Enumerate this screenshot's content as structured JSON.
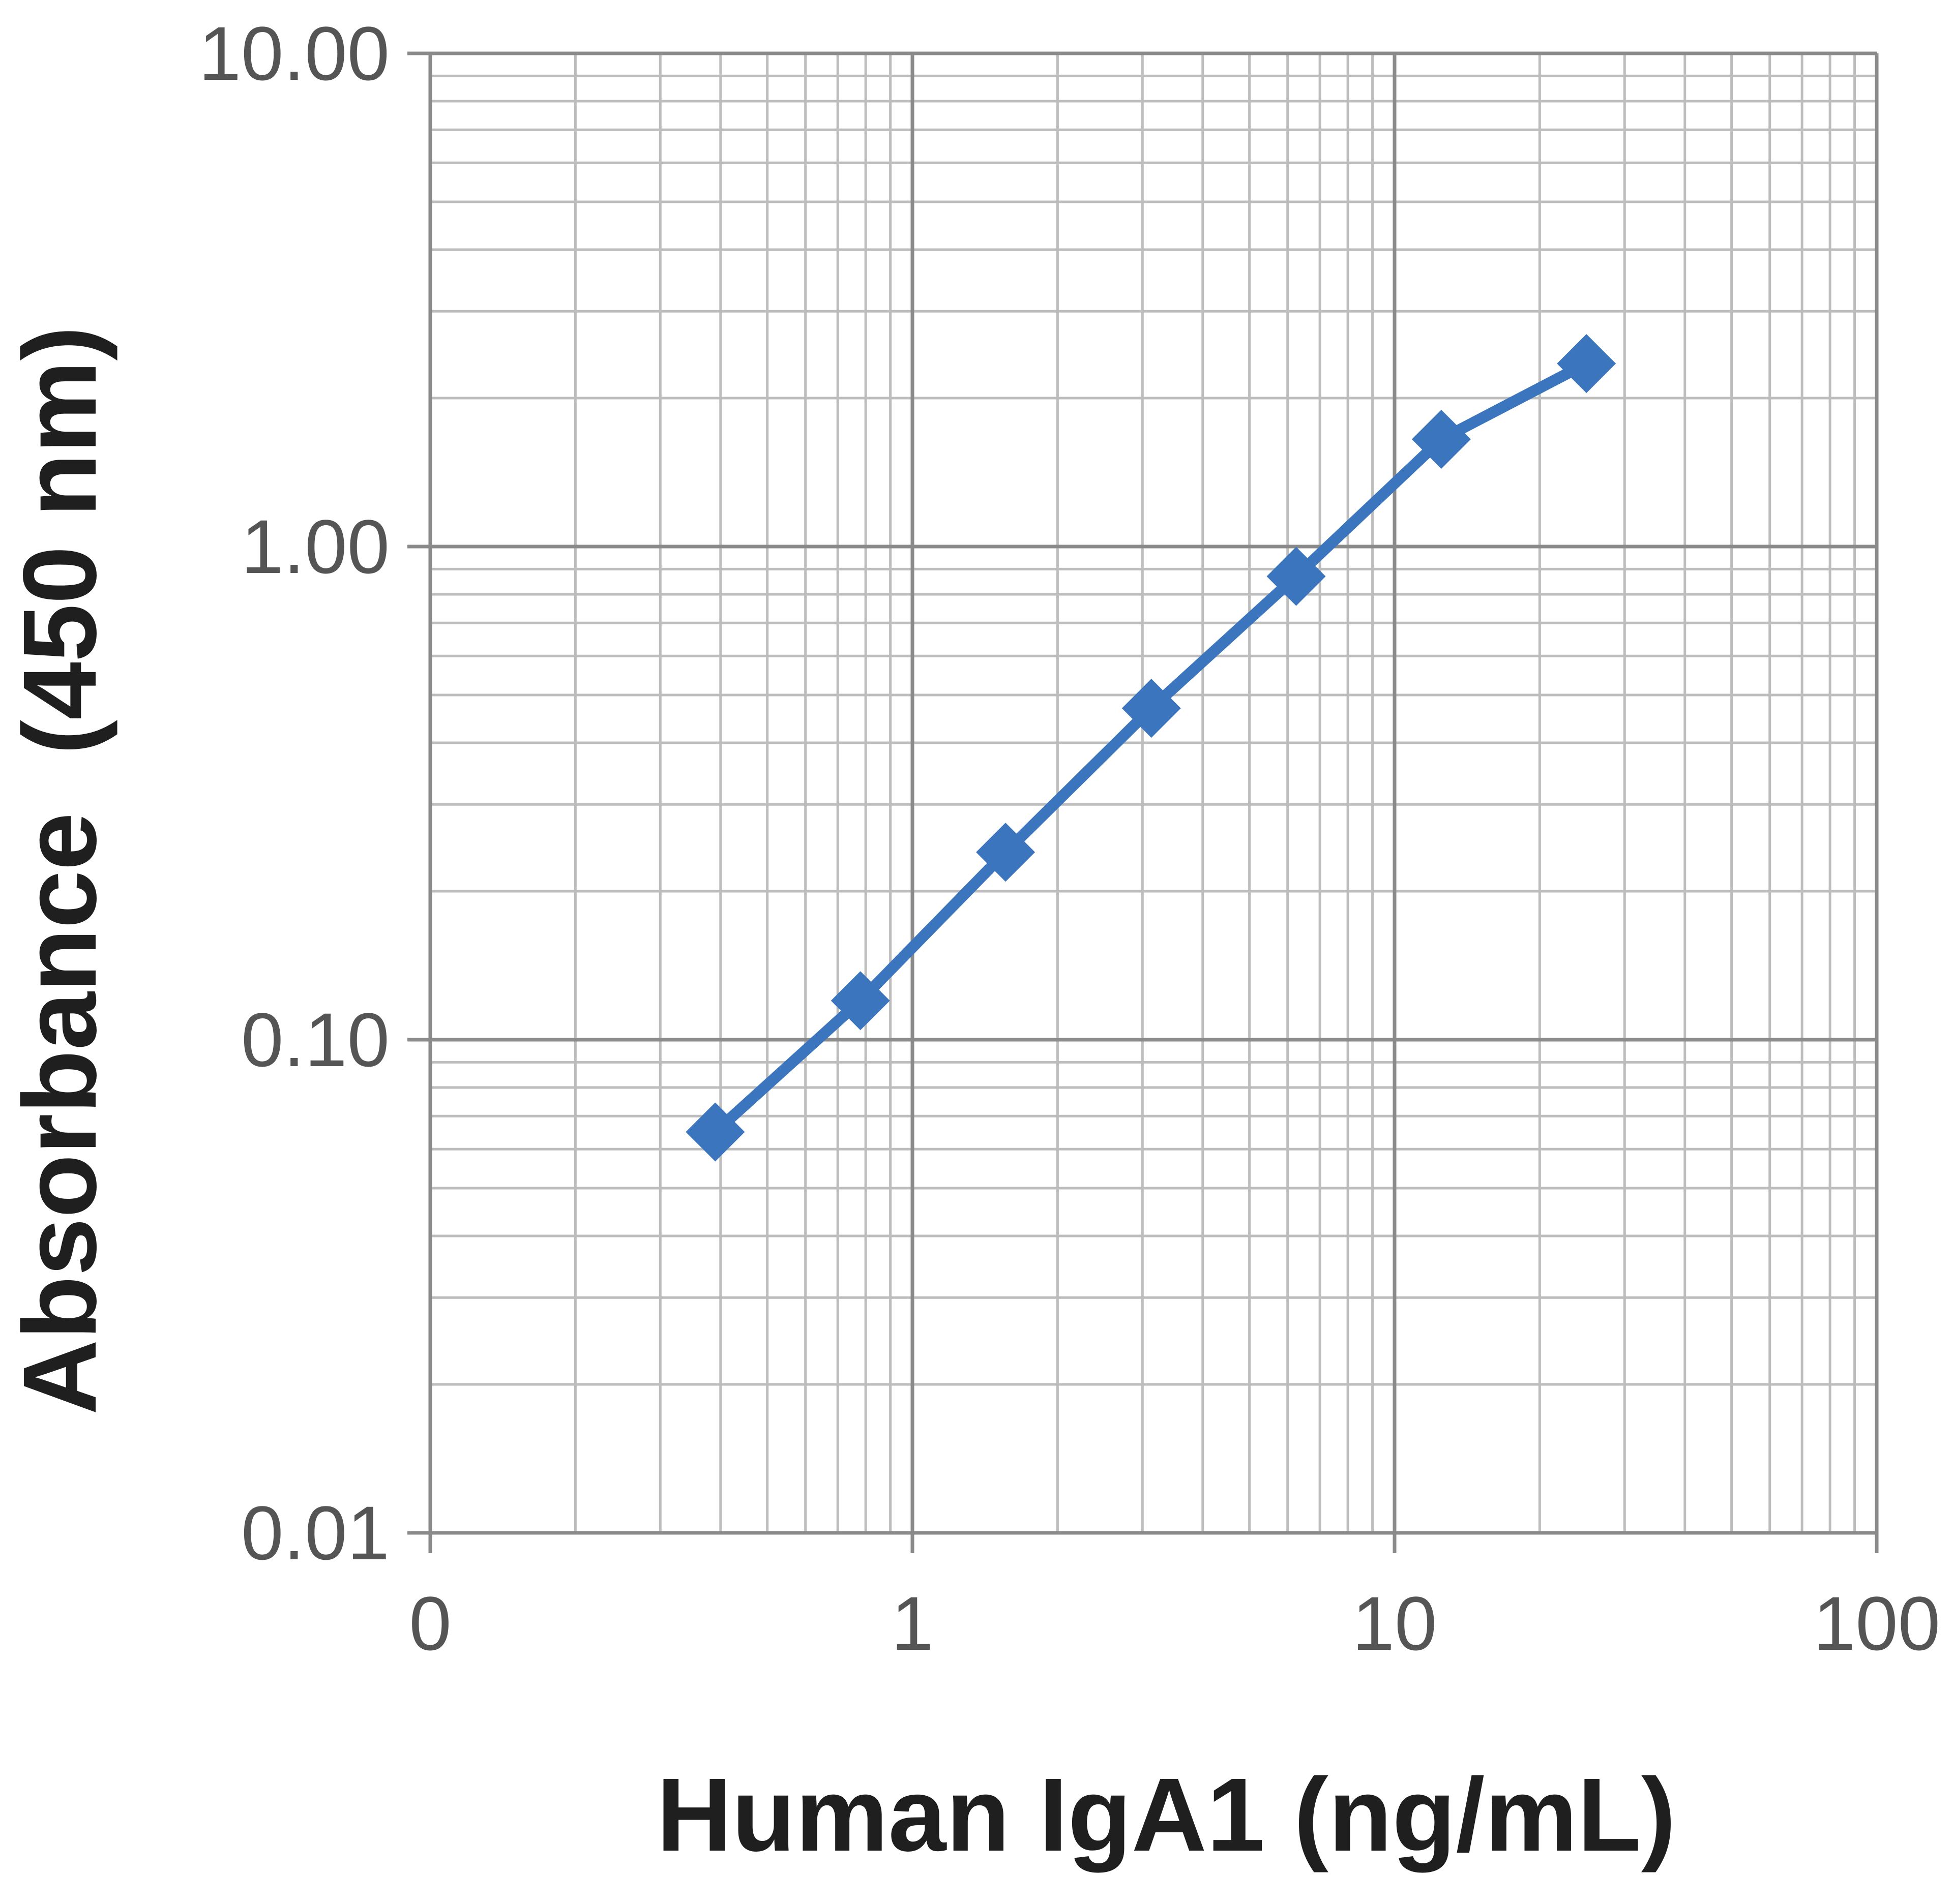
{
  "chart_data": {
    "type": "line",
    "title": "",
    "xlabel": "Human IgA1 (ng/mL)",
    "ylabel": "Absorbance  (450 nm)",
    "xscale": "log",
    "yscale": "log",
    "xlim": [
      0.1,
      100
    ],
    "ylim": [
      0.01,
      10
    ],
    "xticks": [
      0.1,
      1,
      10,
      100
    ],
    "xtick_labels": [
      "0",
      "1",
      "10",
      "100"
    ],
    "yticks": [
      0.01,
      0.1,
      1,
      10
    ],
    "ytick_labels": [
      "0.01",
      "0.10",
      "1.00",
      "10.00"
    ],
    "grid": true,
    "legend": "none",
    "marker": "diamond",
    "series": [
      {
        "color": "#3b75bd",
        "x": [
          0.39,
          0.78,
          1.56,
          3.13,
          6.25,
          12.5,
          25
        ],
        "y": [
          0.065,
          0.12,
          0.24,
          0.47,
          0.87,
          1.65,
          2.35
        ]
      }
    ]
  }
}
